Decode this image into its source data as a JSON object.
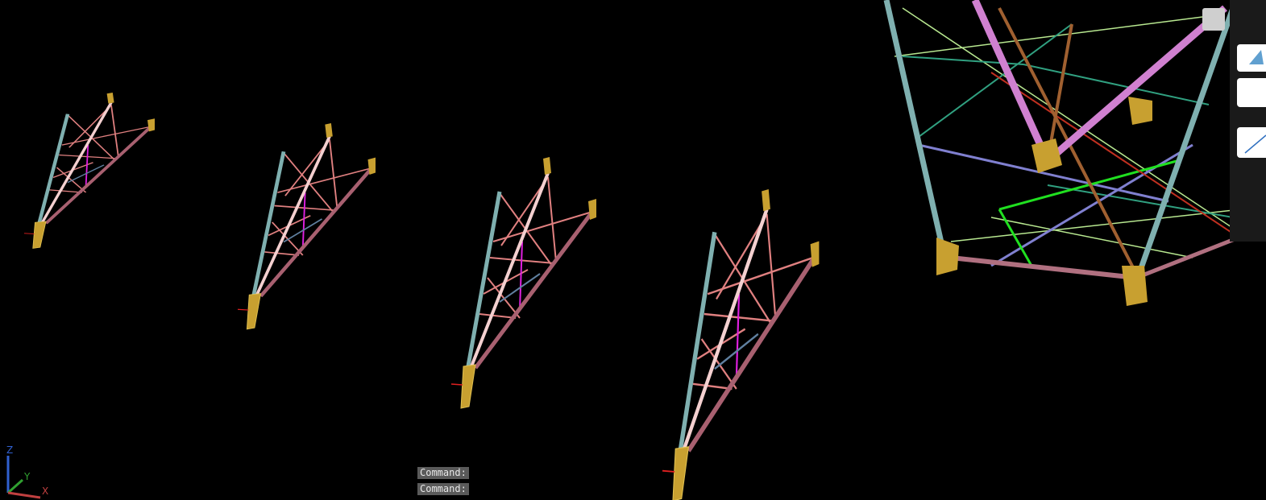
{
  "command_lines": [
    "Command:",
    "Command:"
  ],
  "ucs_icon": {
    "z": "Z",
    "y": "Y",
    "x": "X"
  }
}
